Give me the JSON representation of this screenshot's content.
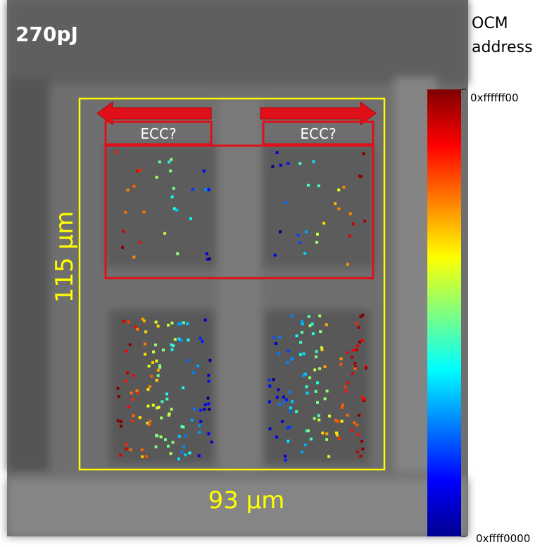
{
  "energy_label": "270pJ",
  "colorbar": {
    "title_lines": [
      "OCM",
      "address"
    ],
    "max_label": "0xffffff00",
    "min_label": "0xffff0000"
  },
  "regions": [
    {
      "label": "ECC?"
    },
    {
      "label": "ECC?"
    }
  ],
  "scale": {
    "height_label": "115 µm",
    "width_label": "93 µm"
  }
}
